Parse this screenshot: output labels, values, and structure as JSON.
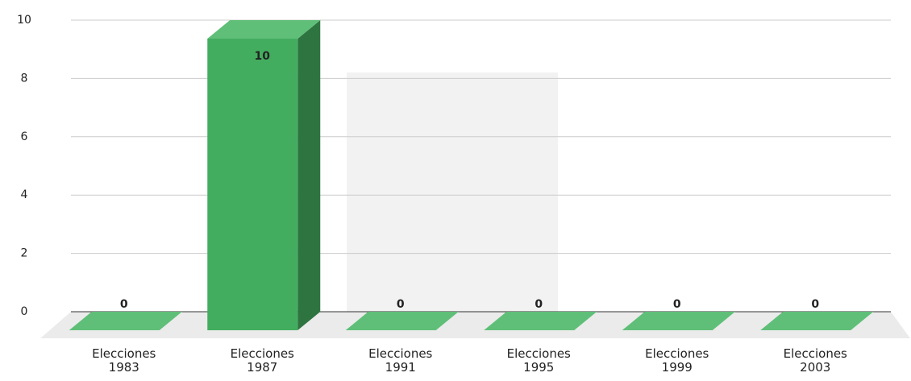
{
  "chart_data": {
    "type": "bar3d",
    "categories": [
      "Elecciones 1983",
      "Elecciones 1987",
      "Elecciones 1991",
      "Elecciones 1995",
      "Elecciones 1999",
      "Elecciones 2003"
    ],
    "values": [
      0,
      10,
      0,
      0,
      0,
      0
    ],
    "color": "#43ad5f",
    "ylim": [
      0,
      10
    ],
    "yticks": [
      0,
      2,
      4,
      6,
      8,
      10
    ],
    "grid": true
  }
}
